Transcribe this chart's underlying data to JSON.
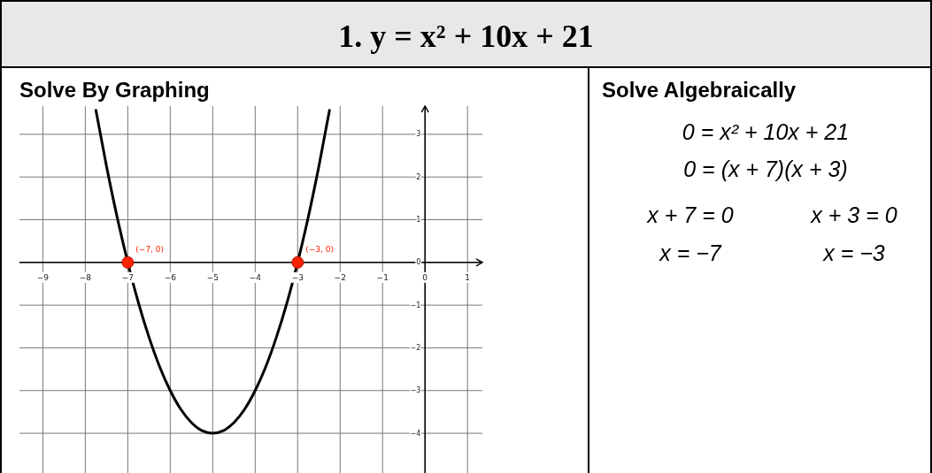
{
  "chart_data": {
    "type": "line",
    "title": "1. y = x² + 10x + 21",
    "subtitle": "Solve By Graphing",
    "annotations": [
      "Solve Algebraically",
      "0 = x² + 10x + 21",
      "0 = (x + 7)(x + 3)",
      "x + 7 = 0",
      "x + 3 = 0",
      "x = −7",
      "x = −3",
      {
        "text": "(−7, 0)",
        "x": -7,
        "y": 0
      },
      {
        "text": "(−3, 0)",
        "x": -3,
        "y": 0
      }
    ],
    "series": [
      {
        "color": "#000000",
        "x": [
          -7.75,
          -7.5,
          -7.25,
          -7,
          -6.75,
          -6.5,
          -6.25,
          -6,
          -5.75,
          -5.5,
          -5.25,
          -5,
          -4.75,
          -4.5,
          -4.25,
          -4,
          -3.75,
          -3.5,
          -3.25,
          -3,
          -2.75,
          -2.5,
          -2.25
        ],
        "values": [
          3.56,
          2.25,
          1.06,
          0,
          -0.94,
          -1.75,
          -2.44,
          -3,
          -3.44,
          -3.75,
          -3.94,
          -4,
          -3.94,
          -3.75,
          -3.44,
          -3,
          -2.44,
          -1.75,
          -0.94,
          0,
          1.06,
          2.25,
          3.56
        ]
      },
      {
        "type": "scatter",
        "color": "#ff2200",
        "marker": "circle",
        "x": [
          -7,
          -3
        ],
        "values": [
          0,
          0
        ]
      }
    ],
    "xlim": [
      -9.55,
      1.35
    ],
    "ylim": [
      -4.93,
      3.66
    ],
    "xticks": [
      -9,
      -8,
      -7,
      -6,
      -5,
      -4,
      -3,
      -2,
      -1,
      0,
      1
    ],
    "yticks": [
      -4,
      -3,
      -2,
      -1,
      0,
      1,
      2,
      3
    ],
    "grid": true
  }
}
